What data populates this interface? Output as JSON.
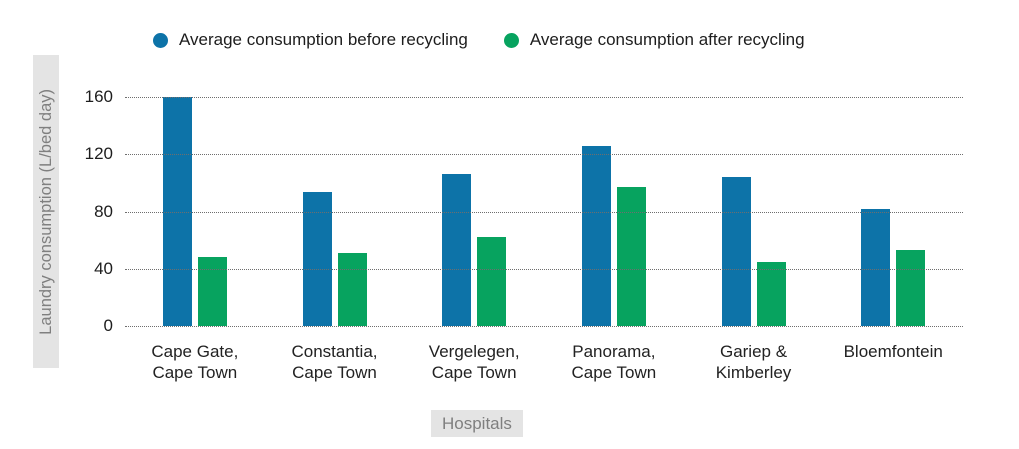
{
  "colors": {
    "before": "#0d73a8",
    "after": "#07a35f",
    "grid": "#6e6e6e",
    "title_bg": "#e4e4e4",
    "title_text": "#7f7f7f",
    "text": "#1d1d1d"
  },
  "legend": {
    "items": [
      {
        "label": "Average consumption before recycling",
        "color": "#0d73a8"
      },
      {
        "label": "Average consumption after recycling",
        "color": "#07a35f"
      }
    ]
  },
  "chart_data": {
    "type": "bar",
    "title": "",
    "xlabel": "Hospitals",
    "ylabel": "Laundry consumption (L/bed day)",
    "ylim": [
      0,
      160
    ],
    "yticks": [
      0,
      40,
      80,
      120,
      160
    ],
    "grid": "horizontal-dotted",
    "legend_position": "top",
    "categories": [
      "Cape Gate,\nCape Town",
      "Constantia,\nCape Town",
      "Vergelegen,\nCape Town",
      "Panorama,\nCape Town",
      "Gariep &\nKimberley",
      "Bloemfontein"
    ],
    "series": [
      {
        "name": "Average consumption before recycling",
        "key": "before",
        "values": [
          160,
          94,
          106,
          126,
          104,
          82
        ]
      },
      {
        "name": "Average consumption after recycling",
        "key": "after",
        "values": [
          48,
          51,
          62,
          97,
          45,
          53
        ]
      }
    ]
  }
}
